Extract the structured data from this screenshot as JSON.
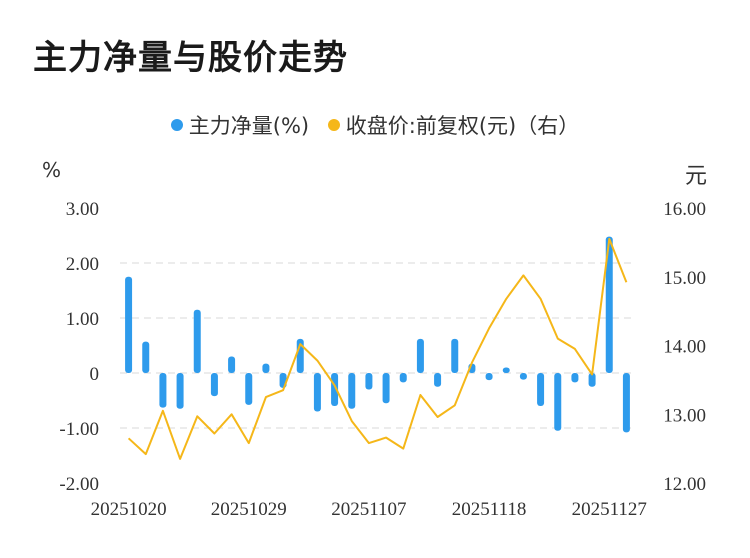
{
  "title": "主力净量与股价走势",
  "legend": {
    "bar_label": "主力净量(%)",
    "line_label": "收盘价:前复权(元)（右）"
  },
  "units": {
    "left": "%",
    "right": "元"
  },
  "colors": {
    "bar": "#2e9bec",
    "line": "#f5b719",
    "grid": "#e6e6e6"
  },
  "chart_data": {
    "type": "bar+line",
    "x": [
      "20251020",
      "20251021",
      "20251022",
      "20251023",
      "20251024",
      "20251027",
      "20251028",
      "20251029",
      "20251030",
      "20251031",
      "20251103",
      "20251104",
      "20251105",
      "20251106",
      "20251107",
      "20251110",
      "20251111",
      "20251112",
      "20251113",
      "20251114",
      "20251117",
      "20251118",
      "20251119",
      "20251120",
      "20251121",
      "20251124",
      "20251125",
      "20251126",
      "20251127",
      "20251128"
    ],
    "x_tick_labels": [
      "20251020",
      "20251029",
      "20251107",
      "20251118",
      "20251127"
    ],
    "series": [
      {
        "name": "主力净量(%)",
        "axis": "left",
        "type": "bar",
        "values": [
          1.75,
          0.57,
          -0.63,
          -0.65,
          1.15,
          -0.42,
          0.3,
          -0.58,
          0.17,
          -0.27,
          0.62,
          -0.7,
          -0.6,
          -0.65,
          -0.3,
          -0.55,
          -0.17,
          0.62,
          -0.25,
          0.62,
          0.17,
          -0.13,
          0.1,
          -0.12,
          -0.6,
          -1.05,
          -0.17,
          -0.25,
          2.48,
          -1.08
        ]
      },
      {
        "name": "收盘价:前复权(元)（右）",
        "axis": "right",
        "type": "line",
        "values": [
          12.65,
          12.42,
          13.05,
          12.35,
          12.97,
          12.72,
          13.0,
          12.58,
          13.25,
          13.35,
          14.02,
          13.78,
          13.42,
          12.9,
          12.58,
          12.66,
          12.5,
          13.28,
          12.96,
          13.13,
          13.75,
          14.25,
          14.68,
          15.02,
          14.68,
          14.1,
          13.95,
          13.58,
          15.55,
          14.92
        ]
      }
    ],
    "y_left": {
      "ticks": [
        "3.00",
        "2.00",
        "1.00",
        "0",
        "-1.00",
        "-2.00"
      ],
      "ylim": [
        -2,
        3
      ]
    },
    "y_right": {
      "ticks": [
        "16.00",
        "15.00",
        "14.00",
        "13.00",
        "12.00"
      ],
      "ylim": [
        12,
        16
      ]
    },
    "grid": true,
    "legend_position": "top-center"
  }
}
